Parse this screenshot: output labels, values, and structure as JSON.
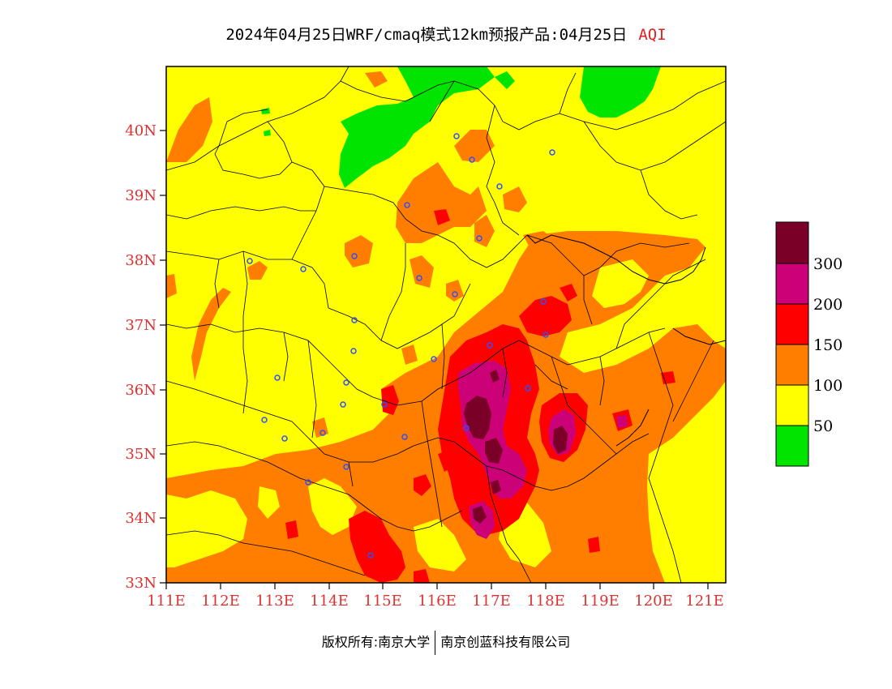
{
  "title": {
    "main": "2024年04月25日WRF/cmaq模式12km预报产品:04月25日",
    "variable": "AQI"
  },
  "axes": {
    "lat_labels": [
      "33N",
      "34N",
      "35N",
      "36N",
      "37N",
      "38N",
      "39N",
      "40N"
    ],
    "lon_labels": [
      "111E",
      "112E",
      "113E",
      "114E",
      "115E",
      "116E",
      "117E",
      "118E",
      "119E",
      "120E",
      "121E"
    ]
  },
  "legend": {
    "labels": [
      "300",
      "200",
      "150",
      "100",
      "50"
    ],
    "colors": {
      "level_300_plus": "#7a0027",
      "level_200_300": "#cc0077",
      "level_150_200": "#ff0000",
      "level_100_150": "#ff7e00",
      "level_50_100": "#ffff00",
      "level_0_50": "#00e400"
    }
  },
  "footer": {
    "copyright": "版权所有:南京大学",
    "company": "南京创蓝科技有限公司"
  }
}
